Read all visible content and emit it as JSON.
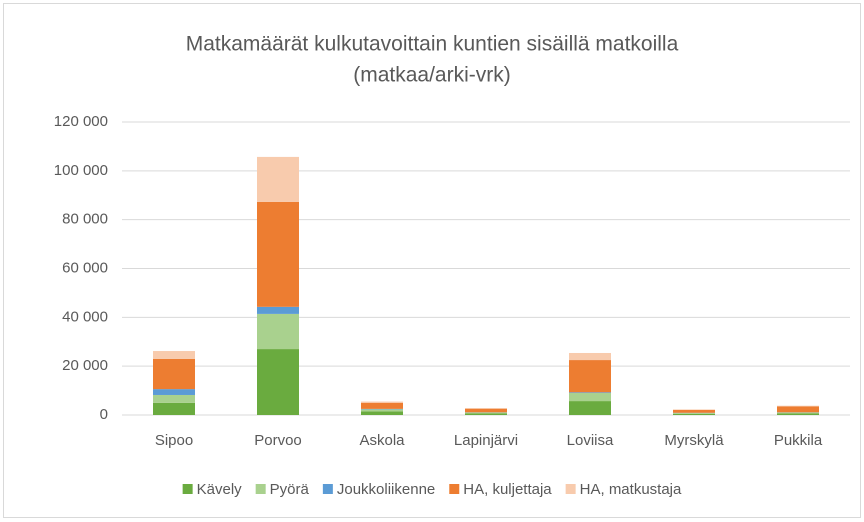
{
  "chart_data": {
    "type": "stacked_bar",
    "title": [
      "Matkamäärät kulkutavoittain kuntien sisäillä matkoilla",
      "(matkaa/arki-vrk)"
    ],
    "categories": [
      "Sipoo",
      "Porvoo",
      "Askola",
      "Lapinjärvi",
      "Loviisa",
      "Myrskylä",
      "Pukkila"
    ],
    "series": [
      {
        "name": "Kävely",
        "color": "#6aab3f",
        "values": [
          5000,
          27000,
          1500,
          700,
          5700,
          500,
          700
        ]
      },
      {
        "name": "Pyörä",
        "color": "#a9d18e",
        "values": [
          3200,
          14400,
          800,
          300,
          3300,
          300,
          300
        ]
      },
      {
        "name": "Joukkoliikenne",
        "color": "#5b9bd5",
        "values": [
          2400,
          2900,
          200,
          100,
          300,
          100,
          100
        ]
      },
      {
        "name": "HA, kuljettaja",
        "color": "#ed7d31",
        "values": [
          12400,
          43000,
          2500,
          1500,
          13200,
          1200,
          2400
        ]
      },
      {
        "name": "HA, matkustaja",
        "color": "#f8cbad",
        "values": [
          3200,
          18400,
          500,
          200,
          2900,
          200,
          300
        ]
      }
    ],
    "ylim": [
      0,
      120000
    ],
    "yticks": [
      0,
      {
        "value": 20000,
        "label": "20 000"
      },
      {
        "value": 40000,
        "label": "40 000"
      },
      {
        "value": 60000,
        "label": "60 000"
      },
      {
        "value": 80000,
        "label": "80 000"
      },
      {
        "value": 100000,
        "label": "100 000"
      },
      {
        "value": 120000,
        "label": "120 000"
      }
    ],
    "grid": true,
    "legend": "bottom"
  }
}
